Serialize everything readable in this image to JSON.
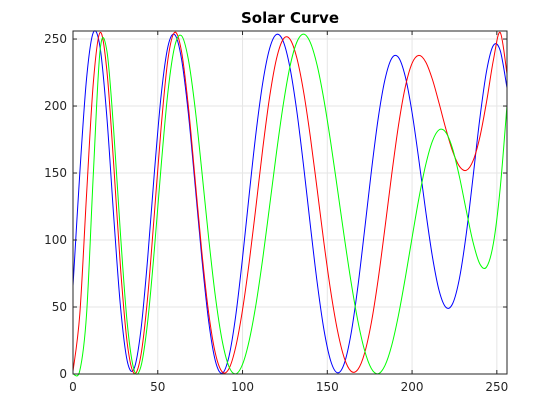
{
  "chart_data": {
    "type": "line",
    "title": "Solar Curve",
    "xlabel": "",
    "ylabel": "",
    "xlim": [
      0,
      256
    ],
    "ylim": [
      0,
      256
    ],
    "x_ticks": [
      0,
      50,
      100,
      150,
      200,
      250
    ],
    "y_ticks": [
      0,
      50,
      100,
      150,
      200,
      250
    ],
    "grid": true,
    "legend": "none",
    "series": [
      {
        "color": "#0000ff",
        "x": [
          0,
          4,
          8,
          12,
          16,
          20,
          24,
          28,
          32,
          36,
          40,
          44,
          48,
          52,
          56,
          60,
          64,
          68,
          72,
          76,
          80,
          84,
          88,
          92,
          96,
          100,
          104,
          108,
          112,
          116,
          120,
          124,
          128,
          132,
          136,
          140,
          144,
          148,
          152,
          156,
          160,
          164,
          168,
          172,
          176,
          180,
          184,
          188,
          192,
          196,
          200,
          204,
          208,
          212,
          216,
          220,
          224,
          228,
          232,
          236,
          240,
          244,
          248,
          252,
          256
        ],
        "values": [
          65.7,
          149.6,
          220.5,
          254.9,
          243.5,
          191.3,
          117.8,
          50.4,
          9.6,
          3.9,
          32.1,
          85.6,
          150.5,
          208.1,
          244.4,
          253.3,
          235.2,
          195.0,
          141.5,
          86.3,
          39.5,
          9.6,
          0.6,
          13.1,
          43.6,
          86.6,
          134.8,
          180.6,
          218.0,
          243.0,
          253.4,
          248.3,
          228.5,
          196.3,
          155.5,
          111.0,
          68.5,
          33.2,
          9.8,
          0.9,
          7.8,
          30.0,
          64.9,
          107.4,
          151.4,
          190.6,
          219.7,
          235.6,
          236.3,
          222.0,
          195.1,
          159.9,
          122.0,
          87.6,
          62.0,
          49.7,
          52.7,
          71.7,
          104.8,
          147.3,
          191.0,
          226.5,
          245.3,
          241.4,
          213.5
        ]
      },
      {
        "color": "#ff0000",
        "x": [
          0,
          4,
          8,
          12,
          16,
          20,
          24,
          28,
          32,
          36,
          40,
          44,
          48,
          52,
          56,
          60,
          64,
          68,
          72,
          76,
          80,
          84,
          88,
          92,
          96,
          100,
          104,
          108,
          112,
          116,
          120,
          124,
          128,
          132,
          136,
          140,
          144,
          148,
          152,
          156,
          160,
          164,
          168,
          172,
          176,
          180,
          184,
          188,
          192,
          196,
          200,
          204,
          208,
          212,
          216,
          220,
          224,
          228,
          232,
          236,
          240,
          244,
          248,
          252,
          256
        ],
        "values": [
          2.0,
          44.5,
          133.9,
          217.5,
          254.9,
          226.2,
          156.6,
          79.7,
          22.9,
          0.5,
          13.6,
          56.8,
          119.7,
          184.4,
          234.9,
          255.0,
          240.8,
          200.3,
          145.8,
          91.0,
          45.8,
          15.3,
          1.6,
          4.0,
          20.3,
          47.9,
          84.0,
          125.8,
          169.0,
          207.0,
          235.1,
          249.9,
          249.9,
          236.0,
          210.8,
          177.0,
          138.0,
          98.0,
          61.9,
          32.5,
          12.0,
          2.1,
          3.3,
          15.6,
          38.5,
          70.6,
          109.0,
          149.0,
          185.6,
          214.2,
          231.9,
          237.8,
          233.0,
          219.9,
          201.8,
          182.7,
          166.0,
          154.9,
          152.0,
          159.2,
          176.9,
          203.6,
          234.5,
          254.9,
          224.0
        ]
      },
      {
        "color": "#00ff00",
        "x": [
          0,
          4,
          8,
          12,
          16,
          20,
          24,
          28,
          32,
          36,
          40,
          44,
          48,
          52,
          56,
          60,
          64,
          68,
          72,
          76,
          80,
          84,
          88,
          92,
          96,
          100,
          104,
          108,
          112,
          116,
          120,
          124,
          128,
          132,
          136,
          140,
          144,
          148,
          152,
          156,
          160,
          164,
          168,
          172,
          176,
          180,
          184,
          188,
          192,
          196,
          200,
          204,
          208,
          212,
          216,
          220,
          224,
          228,
          232,
          236,
          240,
          244,
          248,
          252,
          256
        ],
        "values": [
          0.0,
          2.4,
          44.6,
          149.5,
          241.9,
          241.0,
          181.9,
          104.4,
          37.8,
          3.1,
          5.3,
          38.4,
          93.0,
          155.4,
          210.5,
          244.6,
          252.5,
          235.1,
          198.8,
          151.4,
          101.7,
          57.7,
          24.8,
          5.5,
          0.1,
          7.2,
          25.3,
          52.5,
          86.9,
          125.7,
          165.1,
          200.9,
          229.6,
          247.6,
          253.7,
          247.4,
          230.4,
          204.7,
          173.0,
          138.0,
          102.4,
          68.8,
          39.8,
          17.6,
          4.0,
          0.2,
          6.3,
          21.4,
          44.0,
          71.7,
          101.7,
          130.9,
          155.9,
          173.8,
          182.3,
          180.2,
          167.7,
          146.9,
          121.9,
          98.2,
          82.1,
          80.0,
          97.7,
          138.8,
          200.6
        ]
      }
    ]
  }
}
